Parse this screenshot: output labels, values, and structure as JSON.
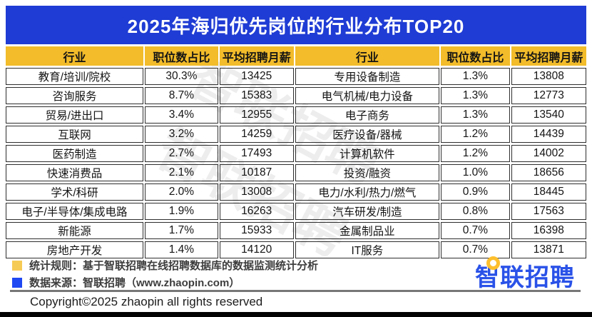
{
  "title": "2025年海归优先岗位的行业分布TOP20",
  "chart_data": {
    "type": "table",
    "title": "2025年海归优先岗位的行业分布TOP20",
    "columns": [
      "行业",
      "职位数占比",
      "平均招聘月薪"
    ],
    "layout": "two side-by-side panes of 10 rows each",
    "rows": [
      [
        "教育/培训/院校",
        "30.3%",
        13425
      ],
      [
        "咨询服务",
        "8.7%",
        15383
      ],
      [
        "贸易/进出口",
        "3.4%",
        12955
      ],
      [
        "互联网",
        "3.2%",
        14259
      ],
      [
        "医药制造",
        "2.7%",
        17493
      ],
      [
        "快速消费品",
        "2.1%",
        10187
      ],
      [
        "学术/科研",
        "2.0%",
        13008
      ],
      [
        "电子/半导体/集成电路",
        "1.9%",
        16263
      ],
      [
        "新能源",
        "1.7%",
        15933
      ],
      [
        "房地产开发",
        "1.4%",
        14120
      ],
      [
        "专用设备制造",
        "1.3%",
        13808
      ],
      [
        "电气机械/电力设备",
        "1.3%",
        12773
      ],
      [
        "电子商务",
        "1.3%",
        13540
      ],
      [
        "医疗设备/器械",
        "1.2%",
        14439
      ],
      [
        "计算机软件",
        "1.2%",
        14002
      ],
      [
        "投资/融资",
        "1.0%",
        18656
      ],
      [
        "电力/水利/热力/燃气",
        "0.9%",
        18445
      ],
      [
        "汽车研发/制造",
        "0.8%",
        17563
      ],
      [
        "金属制品业",
        "0.7%",
        16398
      ],
      [
        "IT服务",
        "0.7%",
        13871
      ]
    ]
  },
  "footer": {
    "stat_rule": "统计规则：基于智联招聘在线招聘数据库的数据监测统计分析",
    "data_source": "数据来源：智联招聘（www.zhaopin.com）",
    "copyright": "Copyright©2025 zhaopin all rights reserved",
    "logo_text": "智联招聘"
  },
  "watermark_text": "智联招聘",
  "colors": {
    "title_bar_blue": "#1f3cd4",
    "header_gold": "#f2bc2a",
    "legend_gold": "#f6cb55",
    "legend_blue": "#1f47f2",
    "logo_blue": "#2a52e8",
    "logo_ring_gold": "#fdbf2d",
    "cell_border": "#2e2e2e"
  }
}
